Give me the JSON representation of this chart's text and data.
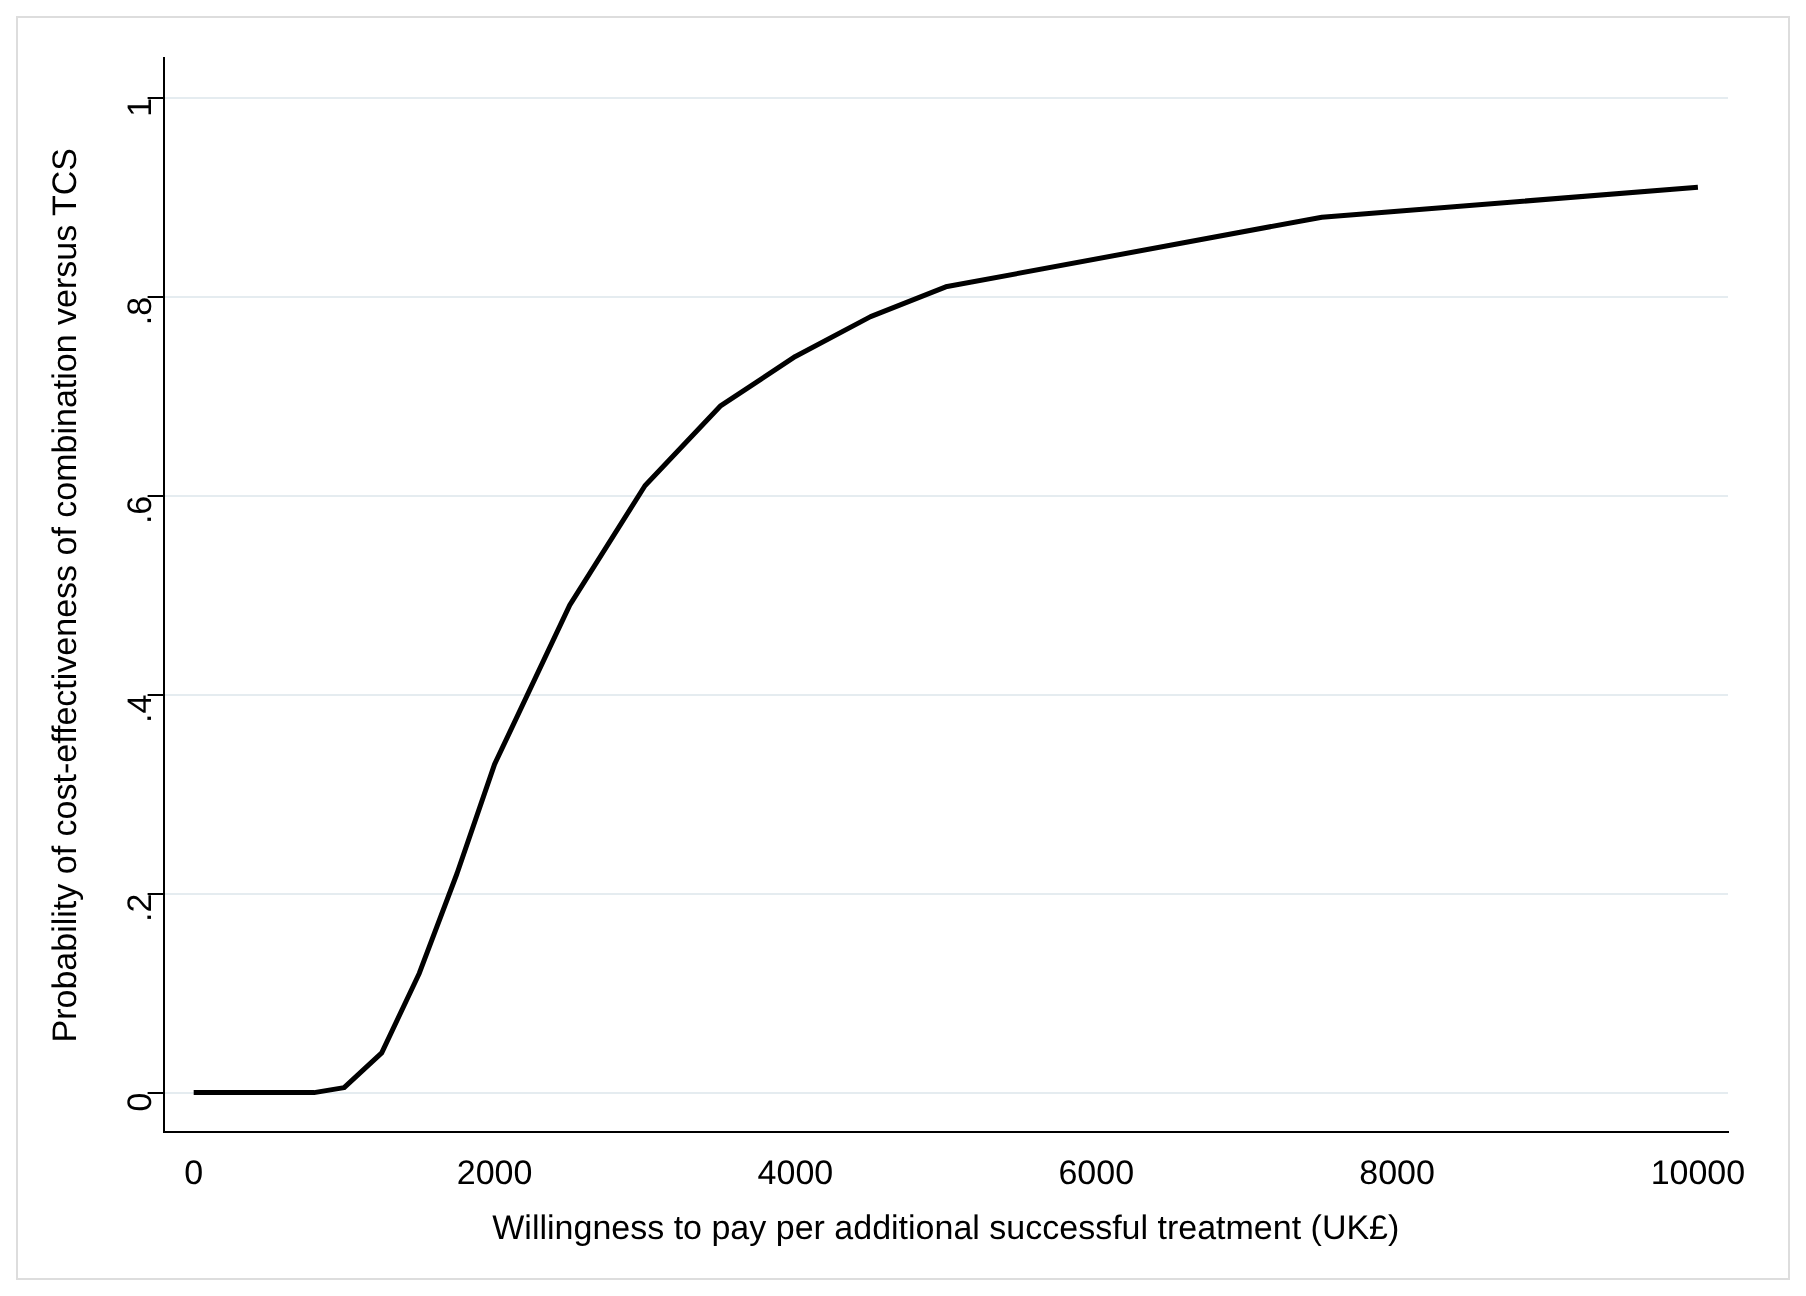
{
  "chart_data": {
    "type": "line",
    "xlabel": "Willingness to pay per additional successful treatment (UK£)",
    "ylabel": "Probability of cost-effectiveness of combination versus TCS",
    "x": [
      0,
      250,
      500,
      750,
      800,
      1000,
      1250,
      1500,
      1750,
      2000,
      2500,
      3000,
      3500,
      4000,
      4500,
      5000,
      7500,
      10000
    ],
    "series": [
      {
        "color": "#000000",
        "values": [
          0,
          0,
          0,
          0,
          0,
          0.005,
          0.04,
          0.12,
          0.22,
          0.33,
          0.49,
          0.61,
          0.69,
          0.74,
          0.78,
          0.81,
          0.88,
          0.91
        ]
      }
    ],
    "xlim": [
      -200,
      10200
    ],
    "xticks": [
      0,
      2000,
      4000,
      6000,
      8000,
      10000
    ],
    "ylim": [
      -0.04,
      1.04
    ],
    "yticks": [
      {
        "value": 0,
        "label": "0"
      },
      {
        "value": 0.2,
        "label": ".2"
      },
      {
        "value": 0.4,
        "label": ".4"
      },
      {
        "value": 0.6,
        "label": ".6"
      },
      {
        "value": 0.8,
        "label": ".8"
      },
      {
        "value": 1,
        "label": "1"
      }
    ],
    "grid": "y",
    "legend": false,
    "marker": "none",
    "line_style": "solid"
  }
}
